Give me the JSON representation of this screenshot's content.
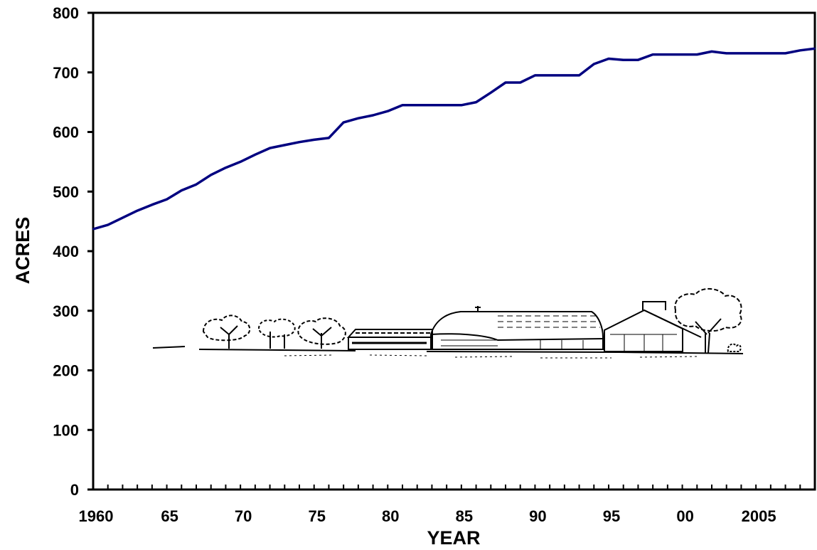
{
  "chart_data": {
    "type": "line",
    "title": "",
    "xlabel": "YEAR",
    "ylabel": "ACRES",
    "xlim": [
      1960,
      2009
    ],
    "ylim": [
      0,
      800
    ],
    "x_tick_values": [
      1960,
      1965,
      1970,
      1975,
      1980,
      1985,
      1990,
      1995,
      2000,
      2005
    ],
    "x_tick_labels": [
      "1960",
      "65",
      "70",
      "75",
      "80",
      "85",
      "90",
      "95",
      "00",
      "2005"
    ],
    "y_tick_values": [
      0,
      100,
      200,
      300,
      400,
      500,
      600,
      700,
      800
    ],
    "y_tick_labels": [
      "0",
      "100",
      "200",
      "300",
      "400",
      "500",
      "600",
      "700",
      "800"
    ],
    "grid": false,
    "line_color": "#000080",
    "illustration": "farm-barn-sketch",
    "series": [
      {
        "x": [
          1960,
          1961,
          1962,
          1963,
          1964,
          1965,
          1966,
          1967,
          1968,
          1969,
          1970,
          1971,
          1972,
          1973,
          1974,
          1975,
          1976,
          1977,
          1978,
          1979,
          1980,
          1981,
          1982,
          1983,
          1984,
          1985,
          1986,
          1987,
          1988,
          1989,
          1990,
          1991,
          1992,
          1993,
          1994,
          1995,
          1996,
          1997,
          1998,
          1999,
          2000,
          2001,
          2002,
          2003,
          2004,
          2005,
          2006,
          2007,
          2008,
          2009
        ],
        "values": [
          437,
          444,
          456,
          468,
          478,
          487,
          502,
          512,
          528,
          540,
          550,
          562,
          573,
          578,
          583,
          587,
          590,
          616,
          623,
          628,
          635,
          645,
          645,
          645,
          645,
          645,
          650,
          666,
          683,
          683,
          695,
          695,
          695,
          695,
          714,
          723,
          721,
          721,
          730,
          730,
          730,
          730,
          735,
          732,
          732,
          732,
          732,
          732,
          737,
          740
        ]
      }
    ]
  }
}
